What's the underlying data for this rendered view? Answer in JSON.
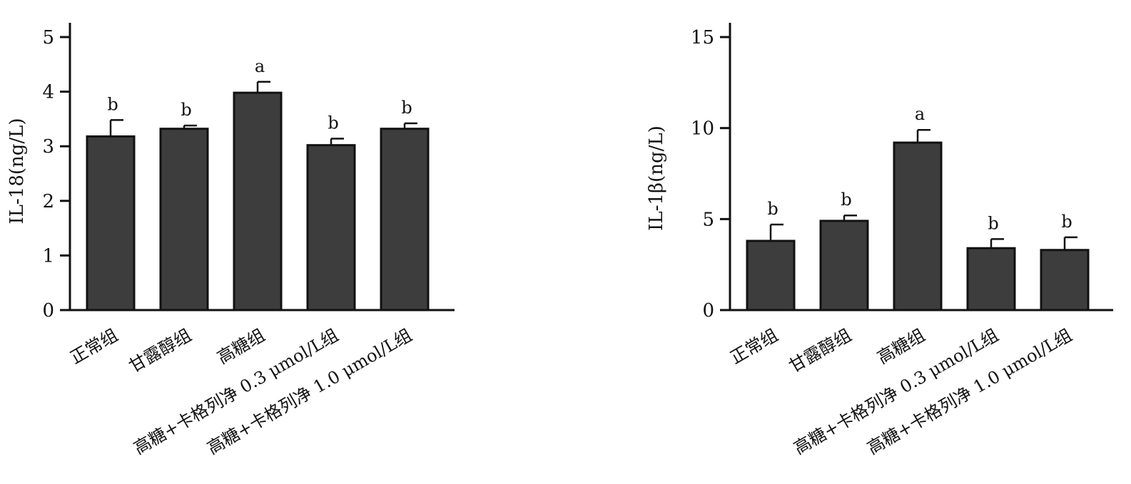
{
  "chart_data": [
    {
      "type": "bar",
      "ylabel": "IL-18(ng/L)",
      "categories": [
        "正常组",
        "甘露醇组",
        "高糖组",
        "高糖+卡格列净 0.3 μmol/L组",
        "高糖+卡格列净 1.0 μmol/L组"
      ],
      "values": [
        3.18,
        3.32,
        3.98,
        3.02,
        3.32
      ],
      "errors": [
        0.3,
        0.06,
        0.2,
        0.12,
        0.1
      ],
      "significance": [
        "b",
        "b",
        "a",
        "b",
        "b"
      ],
      "ylim": [
        0,
        5
      ],
      "yticks": [
        0,
        1,
        2,
        3,
        4,
        5
      ],
      "grid": false,
      "bar_color": "#3d3d3d"
    },
    {
      "type": "bar",
      "ylabel": "IL-1β(ng/L)",
      "categories": [
        "正常组",
        "甘露醇组",
        "高糖组",
        "高糖+卡格列净 0.3 μmol/L组",
        "高糖+卡格列净 1.0 μmol/L组"
      ],
      "values": [
        3.8,
        4.9,
        9.2,
        3.4,
        3.3
      ],
      "errors": [
        0.9,
        0.3,
        0.7,
        0.5,
        0.7
      ],
      "significance": [
        "b",
        "b",
        "a",
        "b",
        "b"
      ],
      "ylim": [
        0,
        15
      ],
      "yticks": [
        0,
        5,
        10,
        15
      ],
      "grid": false,
      "bar_color": "#3d3d3d"
    }
  ]
}
